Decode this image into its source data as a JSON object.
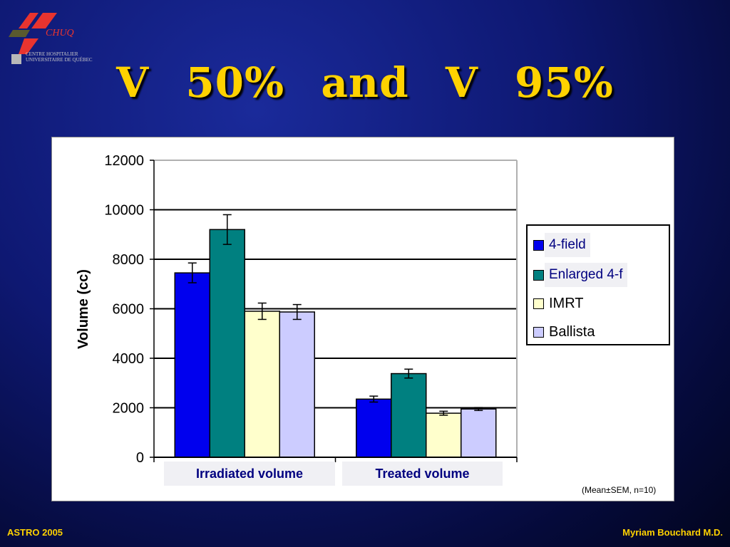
{
  "slide": {
    "title": "V 50%   and   V 95%",
    "footer_left": "ASTRO 2005",
    "footer_right": "Myriam Bouchard M.D.",
    "logo_text": "CHUQ",
    "logo_subtext": "CENTRE HOSPITALIER\nUNIVERSITAIRE DE QUÉBEC",
    "note": "(Mean±SEM, n=10)",
    "colors": {
      "background": "#0e1872",
      "title": "#ffd200"
    }
  },
  "chart_data": {
    "type": "bar",
    "title": "",
    "xlabel": "",
    "ylabel": "Volume (cc)",
    "ylim": [
      0,
      12000
    ],
    "yticks": [
      0,
      2000,
      4000,
      6000,
      8000,
      10000,
      12000
    ],
    "grid": true,
    "legend_position": "right",
    "categories": [
      "Irradiated volume",
      "Treated volume"
    ],
    "series": [
      {
        "name": "4-field",
        "color": "#0000ee",
        "values": [
          7450,
          2350
        ],
        "errors": [
          400,
          120
        ]
      },
      {
        "name": "Enlarged 4-f",
        "color": "#008080",
        "values": [
          9200,
          3380
        ],
        "errors": [
          600,
          180
        ]
      },
      {
        "name": "IMRT",
        "color": "#ffffcc",
        "values": [
          5900,
          1780
        ],
        "errors": [
          330,
          80
        ]
      },
      {
        "name": "Ballista",
        "color": "#ccccff",
        "values": [
          5870,
          1950
        ],
        "errors": [
          300,
          60
        ]
      }
    ]
  }
}
